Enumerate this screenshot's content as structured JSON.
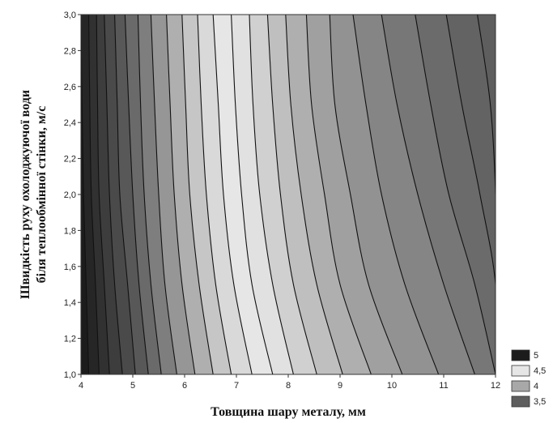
{
  "chart_data": {
    "type": "heatmap",
    "subtype": "filled-contour",
    "xlabel": "Товщина шару металу, мм",
    "ylabel_lines": [
      "Швидкість руху охолоджуючої води",
      "біля  теплообмінної стінки, м/с"
    ],
    "x_ticks": [
      "4",
      "5",
      "6",
      "7",
      "8",
      "9",
      "10",
      "11",
      "12"
    ],
    "y_ticks": [
      "1,0",
      "1,2",
      "1,4",
      "1,6",
      "1,8",
      "2,0",
      "2,2",
      "2,4",
      "2,6",
      "2,8",
      "3,0"
    ],
    "xlim": [
      4,
      12
    ],
    "ylim": [
      1.0,
      3.0
    ],
    "grid": false,
    "legend_position": "bottom-right",
    "legend": [
      {
        "label": "5",
        "color": "#1c1c1c"
      },
      {
        "label": "4,5",
        "color": "#e6e6e6"
      },
      {
        "label": "4",
        "color": "#a8a8a8"
      },
      {
        "label": "3,5",
        "color": "#5e5e5e"
      }
    ],
    "contour_lines_x_at_y": {
      "y": [
        1.0,
        1.5,
        2.0,
        2.5,
        3.0
      ],
      "lines": [
        [
          4.15,
          4.1,
          4.05,
          4.02,
          4.0
        ],
        [
          4.35,
          4.28,
          4.2,
          4.17,
          4.15
        ],
        [
          4.55,
          4.45,
          4.35,
          4.32,
          4.3
        ],
        [
          4.8,
          4.65,
          4.55,
          4.5,
          4.45
        ],
        [
          5.05,
          4.9,
          4.75,
          4.7,
          4.65
        ],
        [
          5.3,
          5.12,
          5.0,
          4.92,
          4.85
        ],
        [
          5.55,
          5.35,
          5.22,
          5.15,
          5.1
        ],
        [
          5.85,
          5.62,
          5.5,
          5.42,
          5.35
        ],
        [
          6.2,
          5.95,
          5.8,
          5.72,
          5.65
        ],
        [
          6.55,
          6.28,
          6.1,
          6.02,
          5.95
        ],
        [
          6.9,
          6.6,
          6.42,
          6.32,
          6.25
        ],
        [
          7.3,
          6.95,
          6.75,
          6.65,
          6.55
        ],
        [
          7.7,
          7.3,
          7.1,
          6.98,
          6.9
        ],
        [
          8.1,
          7.7,
          7.45,
          7.32,
          7.25
        ],
        [
          8.55,
          8.1,
          7.85,
          7.7,
          7.6
        ],
        [
          9.05,
          8.55,
          8.25,
          8.05,
          7.95
        ],
        [
          9.6,
          9.0,
          8.7,
          8.45,
          8.35
        ],
        [
          10.2,
          9.55,
          9.2,
          8.9,
          8.8
        ],
        [
          10.9,
          10.25,
          9.8,
          9.5,
          9.25
        ],
        [
          11.6,
          11.0,
          10.5,
          10.1,
          9.8
        ],
        [
          12.0,
          11.6,
          11.1,
          10.75,
          10.45
        ],
        [
          12.0,
          12.0,
          11.7,
          11.35,
          11.05
        ],
        [
          12.0,
          12.0,
          12.0,
          11.9,
          11.65
        ]
      ]
    },
    "band_fill_colors": [
      "#1c1c1c",
      "#262626",
      "#313131",
      "#3d3d3d",
      "#4a4a4a",
      "#585858",
      "#6a6a6a",
      "#7e7e7e",
      "#969696",
      "#afafaf",
      "#c6c6c6",
      "#d9d9d9",
      "#e6e6e6",
      "#e1e1e1",
      "#d0d0d0",
      "#bfbfbf",
      "#afafaf",
      "#a0a0a0",
      "#929292",
      "#858585",
      "#777777",
      "#6b6b6b",
      "#636363",
      "#5e5e5e"
    ]
  }
}
